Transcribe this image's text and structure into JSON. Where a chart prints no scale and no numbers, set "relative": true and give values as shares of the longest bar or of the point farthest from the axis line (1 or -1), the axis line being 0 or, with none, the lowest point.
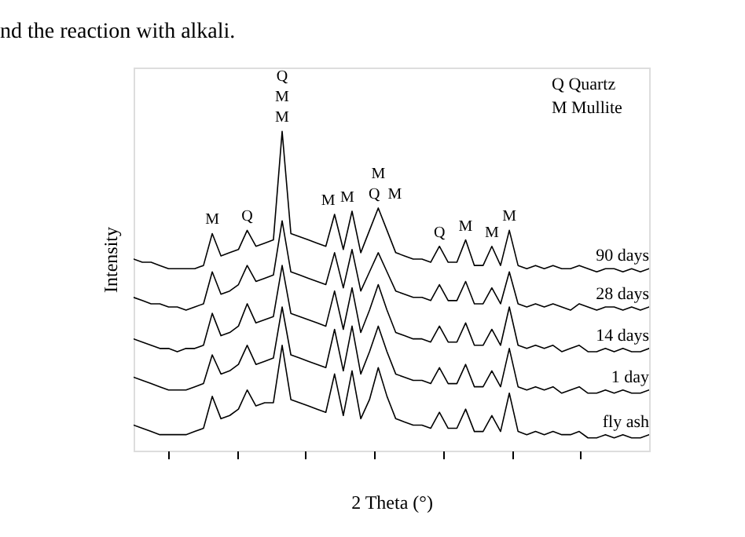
{
  "chart_data": {
    "type": "line",
    "relative": true,
    "xlabel": "2 Theta (°)",
    "ylabel": "Intensity",
    "grid": false,
    "legend": false,
    "marker": "none",
    "line_style": "solid",
    "tick_labels": false,
    "annotations": [
      "nd the reaction with alkali.",
      "Q Quartz",
      "M Mullite",
      "M",
      "Q",
      "Q",
      "M",
      "M",
      "M",
      "M",
      "Q",
      "M",
      "M",
      "Q",
      "M",
      "M",
      "M"
    ],
    "categories": [
      null,
      null,
      null,
      null,
      null,
      null,
      null,
      null,
      null,
      null,
      null,
      null,
      null,
      null,
      null,
      null,
      null,
      null,
      null,
      null,
      null,
      null,
      null,
      null,
      null,
      null,
      null,
      null,
      null,
      null,
      null,
      null,
      null,
      null,
      null,
      null,
      null,
      null,
      null,
      null,
      null,
      null,
      null,
      null,
      null,
      null,
      null,
      null,
      null,
      null,
      null,
      null,
      null,
      null,
      null,
      null,
      null,
      null,
      null,
      null
    ],
    "series": [
      {
        "name": "90 days",
        "color": "#000000",
        "values": [
          0.6,
          0.59,
          0.59,
          0.58,
          0.57,
          0.57,
          0.57,
          0.57,
          0.58,
          0.68,
          0.61,
          0.62,
          0.63,
          0.69,
          0.64,
          0.65,
          0.66,
          1.0,
          0.68,
          0.67,
          0.66,
          0.65,
          0.64,
          0.74,
          0.63,
          0.75,
          0.62,
          0.69,
          0.76,
          0.69,
          0.62,
          0.61,
          0.6,
          0.6,
          0.59,
          0.64,
          0.59,
          0.59,
          0.66,
          0.58,
          0.58,
          0.64,
          0.58,
          0.69,
          0.58,
          0.57,
          0.58,
          0.57,
          0.58,
          0.57,
          0.57,
          0.58,
          0.57,
          0.56,
          0.57,
          0.57,
          0.56,
          0.57,
          0.56,
          0.57
        ]
      },
      {
        "name": "28 days",
        "color": "#000000",
        "values": [
          0.48,
          0.47,
          0.46,
          0.46,
          0.45,
          0.45,
          0.44,
          0.45,
          0.46,
          0.56,
          0.49,
          0.5,
          0.52,
          0.58,
          0.53,
          0.54,
          0.55,
          0.72,
          0.56,
          0.55,
          0.54,
          0.53,
          0.52,
          0.62,
          0.51,
          0.63,
          0.5,
          0.56,
          0.62,
          0.56,
          0.5,
          0.49,
          0.48,
          0.48,
          0.47,
          0.52,
          0.47,
          0.47,
          0.53,
          0.46,
          0.46,
          0.51,
          0.46,
          0.56,
          0.46,
          0.45,
          0.46,
          0.45,
          0.46,
          0.45,
          0.44,
          0.46,
          0.45,
          0.44,
          0.45,
          0.45,
          0.44,
          0.45,
          0.44,
          0.45
        ]
      },
      {
        "name": "14 days",
        "color": "#000000",
        "values": [
          0.35,
          0.34,
          0.33,
          0.32,
          0.32,
          0.31,
          0.32,
          0.32,
          0.33,
          0.43,
          0.36,
          0.37,
          0.39,
          0.46,
          0.4,
          0.41,
          0.42,
          0.58,
          0.43,
          0.42,
          0.41,
          0.4,
          0.39,
          0.5,
          0.38,
          0.51,
          0.37,
          0.44,
          0.52,
          0.44,
          0.37,
          0.36,
          0.35,
          0.35,
          0.34,
          0.39,
          0.34,
          0.34,
          0.4,
          0.33,
          0.33,
          0.38,
          0.33,
          0.45,
          0.33,
          0.32,
          0.33,
          0.32,
          0.33,
          0.31,
          0.32,
          0.33,
          0.31,
          0.31,
          0.32,
          0.31,
          0.32,
          0.31,
          0.31,
          0.32
        ]
      },
      {
        "name": "1 day",
        "color": "#000000",
        "values": [
          0.23,
          0.22,
          0.21,
          0.2,
          0.19,
          0.19,
          0.19,
          0.2,
          0.21,
          0.3,
          0.24,
          0.25,
          0.27,
          0.33,
          0.27,
          0.28,
          0.29,
          0.45,
          0.3,
          0.29,
          0.28,
          0.27,
          0.26,
          0.38,
          0.25,
          0.39,
          0.24,
          0.31,
          0.39,
          0.31,
          0.24,
          0.23,
          0.22,
          0.22,
          0.21,
          0.26,
          0.21,
          0.21,
          0.27,
          0.2,
          0.2,
          0.25,
          0.2,
          0.32,
          0.2,
          0.19,
          0.2,
          0.19,
          0.2,
          0.18,
          0.19,
          0.2,
          0.18,
          0.18,
          0.19,
          0.18,
          0.19,
          0.18,
          0.18,
          0.19
        ]
      },
      {
        "name": "fly ash",
        "color": "#000000",
        "values": [
          0.08,
          0.07,
          0.06,
          0.05,
          0.05,
          0.05,
          0.05,
          0.06,
          0.07,
          0.17,
          0.1,
          0.11,
          0.13,
          0.19,
          0.14,
          0.15,
          0.15,
          0.33,
          0.16,
          0.15,
          0.14,
          0.13,
          0.12,
          0.24,
          0.11,
          0.25,
          0.1,
          0.16,
          0.26,
          0.17,
          0.1,
          0.09,
          0.08,
          0.08,
          0.07,
          0.12,
          0.07,
          0.07,
          0.13,
          0.06,
          0.06,
          0.11,
          0.06,
          0.18,
          0.06,
          0.05,
          0.06,
          0.05,
          0.06,
          0.05,
          0.05,
          0.06,
          0.04,
          0.04,
          0.05,
          0.04,
          0.05,
          0.04,
          0.04,
          0.05
        ]
      }
    ]
  }
}
